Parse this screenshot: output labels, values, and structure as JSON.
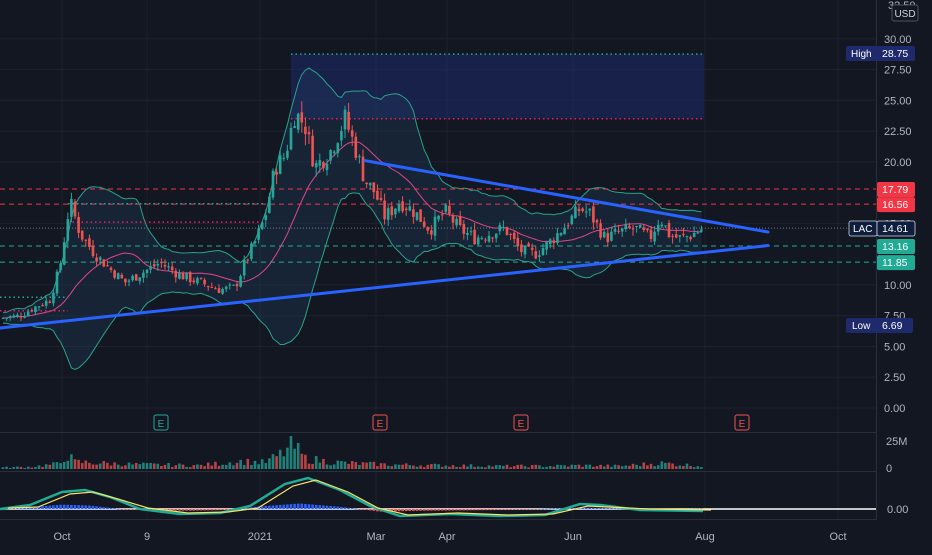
{
  "header": {
    "currency": "USD",
    "top_tick_clipped": "32.50"
  },
  "price_axis": {
    "ticks": [
      "30.00",
      "27.50",
      "25.00",
      "22.50",
      "20.00",
      "15.00",
      "10.00",
      "7.50",
      "5.00",
      "2.50",
      "0.00"
    ],
    "tick_values": [
      30,
      27.5,
      25,
      22.5,
      20,
      15,
      10,
      7.5,
      5,
      2.5,
      0
    ]
  },
  "volume_axis": {
    "ticks": [
      "25M",
      "0"
    ],
    "tick_values": [
      25,
      0
    ]
  },
  "macd_axis": {
    "ticks": [
      "0.00"
    ],
    "tick_values": [
      0
    ]
  },
  "time_axis": {
    "labels": [
      "Oct",
      "9",
      "2021",
      "Mar",
      "Apr",
      "Jun",
      "Aug",
      "Oct"
    ]
  },
  "badges": {
    "high": {
      "label": "High",
      "value": "28.75"
    },
    "low": {
      "label": "Low",
      "value": "6.69"
    },
    "last": {
      "symbol": "LAC",
      "value": "14.61"
    },
    "levels": [
      {
        "value": "17.79",
        "color": "#f23645"
      },
      {
        "value": "16.56",
        "color": "#f23645"
      },
      {
        "value": "13.16",
        "color": "#22ab94"
      },
      {
        "value": "11.85",
        "color": "#22ab94"
      }
    ]
  },
  "earnings_markers": [
    "E",
    "E",
    "E",
    "E"
  ],
  "colors": {
    "background": "#131722",
    "up": "#26a69a",
    "down": "#ef5350",
    "trendline": "#2962ff",
    "resistance": "#f23645",
    "support": "#22ab94",
    "grid": "#1e2230",
    "band_fill": "#1f3d5c",
    "range_box": "#1e2a6b"
  },
  "chart_data": {
    "type": "candlestick",
    "symbol": "LAC",
    "currency": "USD",
    "last_price": 14.61,
    "high": 28.75,
    "low": 6.69,
    "resistance_levels": [
      17.79,
      16.56
    ],
    "support_levels": [
      13.16,
      11.85
    ],
    "highlight_range": [
      23.5,
      28.75
    ],
    "ylim": [
      0,
      32.5
    ],
    "x_labels": [
      "Oct",
      "9",
      "2021",
      "Mar",
      "Apr",
      "Jun",
      "Aug",
      "Oct"
    ],
    "price_path": [
      [
        0,
        7.3
      ],
      [
        20,
        7.5
      ],
      [
        35,
        8.2
      ],
      [
        50,
        8.8
      ],
      [
        60,
        11.5
      ],
      [
        70,
        16.8
      ],
      [
        80,
        14.2
      ],
      [
        95,
        12.5
      ],
      [
        110,
        11.3
      ],
      [
        125,
        10.2
      ],
      [
        140,
        10.9
      ],
      [
        160,
        11.8
      ],
      [
        180,
        10.8
      ],
      [
        200,
        10.2
      ],
      [
        220,
        9.6
      ],
      [
        235,
        9.8
      ],
      [
        245,
        11.8
      ],
      [
        255,
        13.5
      ],
      [
        265,
        15.5
      ],
      [
        275,
        19.5
      ],
      [
        285,
        20.5
      ],
      [
        295,
        24.0
      ],
      [
        305,
        23.0
      ],
      [
        315,
        19.6
      ],
      [
        330,
        20.8
      ],
      [
        345,
        23.5
      ],
      [
        355,
        21.2
      ],
      [
        365,
        18.5
      ],
      [
        375,
        17.5
      ],
      [
        385,
        15.5
      ],
      [
        400,
        16.8
      ],
      [
        415,
        15.9
      ],
      [
        430,
        14.5
      ],
      [
        445,
        16.0
      ],
      [
        460,
        14.5
      ],
      [
        475,
        13.8
      ],
      [
        490,
        14.2
      ],
      [
        505,
        14.6
      ],
      [
        520,
        12.8
      ],
      [
        535,
        12.5
      ],
      [
        550,
        13.5
      ],
      [
        565,
        14.8
      ],
      [
        580,
        16.2
      ],
      [
        590,
        15.8
      ],
      [
        605,
        13.8
      ],
      [
        620,
        14.3
      ],
      [
        635,
        14.6
      ],
      [
        650,
        13.8
      ],
      [
        660,
        15.5
      ],
      [
        670,
        14.0
      ],
      [
        680,
        13.8
      ],
      [
        690,
        14.0
      ],
      [
        703,
        14.61
      ]
    ],
    "volume_path": [
      [
        0,
        1.2
      ],
      [
        30,
        1.8
      ],
      [
        60,
        4.5
      ],
      [
        66,
        13.0
      ],
      [
        75,
        6.0
      ],
      [
        100,
        5.0
      ],
      [
        130,
        4.0
      ],
      [
        160,
        3.5
      ],
      [
        200,
        3.0
      ],
      [
        240,
        6.5
      ],
      [
        265,
        5.5
      ],
      [
        280,
        12.0
      ],
      [
        293,
        20.0
      ],
      [
        305,
        9.0
      ],
      [
        330,
        6.0
      ],
      [
        360,
        4.5
      ],
      [
        400,
        3.5
      ],
      [
        450,
        3.0
      ],
      [
        500,
        2.5
      ],
      [
        550,
        2.5
      ],
      [
        580,
        3.0
      ],
      [
        620,
        2.5
      ],
      [
        660,
        5.0
      ],
      [
        703,
        2.5
      ]
    ],
    "volume_ylim": [
      0,
      28
    ],
    "trendlines": [
      {
        "name": "upper",
        "from": [
          365,
          20.1
        ],
        "to": [
          768,
          14.3
        ]
      },
      {
        "name": "lower",
        "from": [
          0,
          6.5
        ],
        "to": [
          768,
          13.2
        ]
      }
    ]
  }
}
